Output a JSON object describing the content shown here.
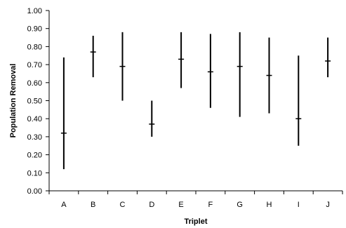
{
  "chart_data": {
    "type": "range-plot",
    "xlabel": "Triplet",
    "ylabel": "Population Removal",
    "ylim": [
      0.0,
      1.0
    ],
    "y_ticks": [
      "0.00",
      "0.10",
      "0.20",
      "0.30",
      "0.40",
      "0.50",
      "0.60",
      "0.70",
      "0.80",
      "0.90",
      "1.00"
    ],
    "grid": false,
    "categories": [
      "A",
      "B",
      "C",
      "D",
      "E",
      "F",
      "G",
      "H",
      "I",
      "J"
    ],
    "series": [
      {
        "low": [
          0.12,
          0.63,
          0.5,
          0.3,
          0.57,
          0.46,
          0.41,
          0.43,
          0.25,
          0.63
        ],
        "high": [
          0.74,
          0.86,
          0.88,
          0.5,
          0.88,
          0.87,
          0.88,
          0.85,
          0.75,
          0.85
        ],
        "mean": [
          0.32,
          0.77,
          0.69,
          0.37,
          0.73,
          0.66,
          0.69,
          0.64,
          0.4,
          0.72
        ]
      }
    ]
  }
}
